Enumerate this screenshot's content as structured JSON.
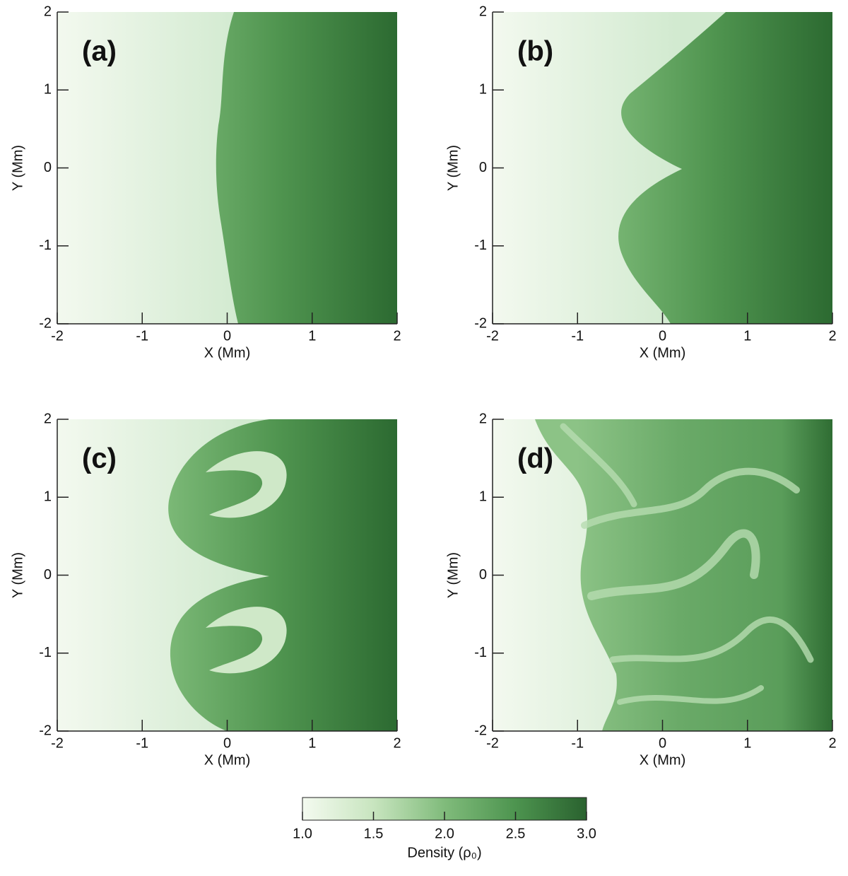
{
  "panels": [
    {
      "label": "(a)",
      "xlabel": "X (Mm)",
      "ylabel": "Y (Mm)",
      "xlim": [
        -2,
        2
      ],
      "ylim": [
        -2,
        2
      ],
      "xticks": [
        -2,
        -1,
        0,
        1,
        2
      ],
      "yticks": [
        -2,
        -1,
        0,
        1,
        2
      ]
    },
    {
      "label": "(b)",
      "xlabel": "X (Mm)",
      "ylabel": "Y (Mm)",
      "xlim": [
        -2,
        2
      ],
      "ylim": [
        -2,
        2
      ],
      "xticks": [
        -2,
        -1,
        0,
        1,
        2
      ],
      "yticks": [
        -2,
        -1,
        0,
        1,
        2
      ]
    },
    {
      "label": "(c)",
      "xlabel": "X (Mm)",
      "ylabel": "Y (Mm)",
      "xlim": [
        -2,
        2
      ],
      "ylim": [
        -2,
        2
      ],
      "xticks": [
        -2,
        -1,
        0,
        1,
        2
      ],
      "yticks": [
        -2,
        -1,
        0,
        1,
        2
      ]
    },
    {
      "label": "(d)",
      "xlabel": "X (Mm)",
      "ylabel": "Y (Mm)",
      "xlim": [
        -2,
        2
      ],
      "ylim": [
        -2,
        2
      ],
      "xticks": [
        -2,
        -1,
        0,
        1,
        2
      ],
      "yticks": [
        -2,
        -1,
        0,
        1,
        2
      ]
    }
  ],
  "colorbar": {
    "label": "Density (ρ₀)",
    "lim": [
      1,
      3
    ],
    "ticks": [
      {
        "value": 1,
        "label": "1.0"
      },
      1.5,
      {
        "value": 2,
        "label": "2.0"
      },
      2.5,
      {
        "value": 3,
        "label": "3.0"
      }
    ],
    "colormap": [
      "#f4faf0",
      "#c8e5bf",
      "#80bb7b",
      "#4d944f",
      "#2a622f"
    ]
  }
}
